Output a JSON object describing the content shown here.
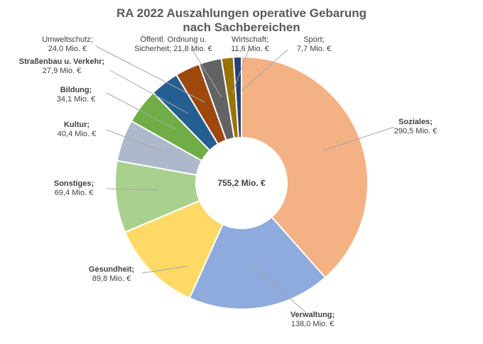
{
  "chart_data": {
    "type": "pie",
    "title": "RA 2022 Auszahlungen operative Gebarung",
    "subtitle": "nach Sachbereichen",
    "total_label": "755,2 Mio. €",
    "unit": "Mio. €",
    "categories": [
      "Soziales",
      "Verwaltung",
      "Gesundheit",
      "Sonstiges",
      "Kultur",
      "Bildung",
      "Straßenbau u. Verkehr",
      "Umweltschutz",
      "Öffentl. Ordnung u. Sicherheit",
      "Wirtschaft",
      "Sport"
    ],
    "values": [
      290.5,
      138.0,
      89.8,
      69.4,
      40.4,
      34.1,
      27.9,
      24.0,
      21.8,
      11.6,
      7.7
    ],
    "value_labels": [
      "290,5 Mio. €",
      "138,0 Mio. €",
      "89,8 Mio. €",
      "69,4 Mio. €",
      "40,4 Mio. €",
      "34,1 Mio. €",
      "27,9 Mio. €",
      "24,0 Mio. €",
      "21,8 Mio. €",
      "11,6 Mio. €",
      "7,7 Mio. €"
    ],
    "name_lines": [
      [
        "Soziales;"
      ],
      [
        "Verwaltung;"
      ],
      [
        "Gesundheit;"
      ],
      [
        "Sonstiges;"
      ],
      [
        "Kultur;"
      ],
      [
        "Bildung;"
      ],
      [
        "Straßenbau u. Verkehr;"
      ],
      [
        "Umweltschutz;"
      ],
      [
        "Öffentl. Ordnung u."
      ],
      [
        "Wirtschaft;"
      ],
      [
        "Sport;"
      ]
    ],
    "value_lines": [
      "290,5 Mio. €",
      "138,0 Mio. €",
      "89,8 Mio. €",
      "69,4 Mio. €",
      "40,4 Mio. €",
      "34,1 Mio. €",
      "27,9 Mio. €",
      "24,0 Mio. €",
      "Sicherheit; 21,8 Mio. €",
      "11,6 Mio. €",
      "7,7 Mio. €"
    ],
    "bold_names": [
      true,
      true,
      true,
      true,
      true,
      true,
      true,
      false,
      false,
      false,
      false
    ],
    "colors": [
      "#F4B183",
      "#8FAADC",
      "#FFD966",
      "#A9D18E",
      "#ADB9CA",
      "#70AD47",
      "#255E91",
      "#9E480E",
      "#636363",
      "#997300",
      "#264478"
    ],
    "donut": true,
    "legend": "none"
  }
}
